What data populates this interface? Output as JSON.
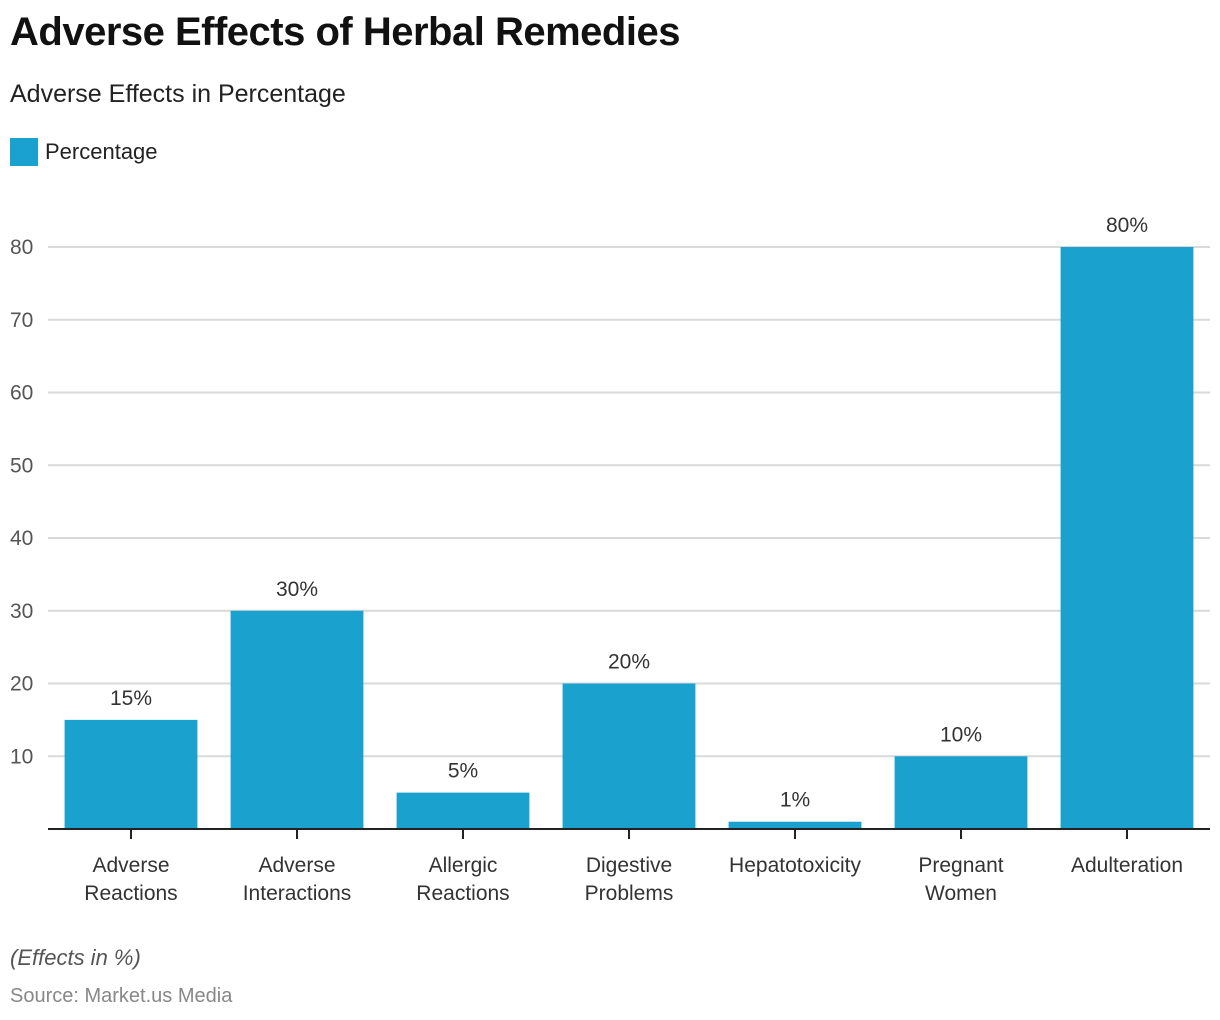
{
  "header": {
    "title": "Adverse Effects of Herbal Remedies",
    "subtitle": "Adverse Effects in Percentage"
  },
  "footer": {
    "note": "(Effects in %)",
    "source": "Source: Market.us Media"
  },
  "chart_data": {
    "type": "bar",
    "title": "Adverse Effects of Herbal Remedies",
    "subtitle": "Adverse Effects in Percentage",
    "xlabel": "",
    "ylabel": "",
    "categories": [
      [
        "Adverse",
        "Reactions"
      ],
      [
        "Adverse",
        "Interactions"
      ],
      [
        "Allergic",
        "Reactions"
      ],
      [
        "Digestive",
        "Problems"
      ],
      [
        "Hepatotoxicity"
      ],
      [
        "Pregnant",
        "Women"
      ],
      [
        "Adulteration"
      ]
    ],
    "series": [
      {
        "name": "Percentage",
        "color": "#1aa1cd",
        "values": [
          15,
          30,
          5,
          20,
          1,
          10,
          80
        ],
        "labels": [
          "15%",
          "30%",
          "5%",
          "20%",
          "1%",
          "10%",
          "80%"
        ]
      }
    ],
    "ylim": [
      0,
      80
    ],
    "yticks": [
      10,
      20,
      30,
      40,
      50,
      60,
      70,
      80
    ],
    "grid": true,
    "legend": "top-left",
    "colors": {
      "bar": "#1aa1cd",
      "grid": "#d9d9d9",
      "axis": "#222222"
    }
  }
}
